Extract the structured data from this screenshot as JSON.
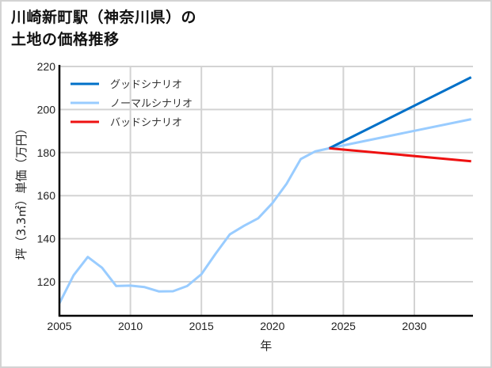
{
  "title": {
    "line1": "川崎新町駅（神奈川県）の",
    "line2": "土地の価格推移"
  },
  "chart_data": {
    "type": "line",
    "title": "川崎新町駅（神奈川県）の土地の価格推移",
    "xlabel": "年",
    "ylabel": "坪（3.3㎡）単価（万円）",
    "xlim": [
      2005,
      2034
    ],
    "ylim": [
      104,
      220
    ],
    "x_ticks": [
      2005,
      2010,
      2015,
      2020,
      2025,
      2030
    ],
    "y_ticks": [
      120,
      140,
      160,
      180,
      200,
      220
    ],
    "grid": true,
    "legend_position": "upper-left",
    "series": [
      {
        "name": "グッドシナリオ",
        "color": "#0070c8",
        "x": [
          2024,
          2034
        ],
        "values": [
          182,
          215
        ]
      },
      {
        "name": "ノーマルシナリオ",
        "color": "#99ccff",
        "x": [
          2005,
          2006,
          2007,
          2008,
          2009,
          2010,
          2011,
          2012,
          2013,
          2014,
          2015,
          2016,
          2017,
          2018,
          2019,
          2020,
          2021,
          2022,
          2023,
          2024,
          2034
        ],
        "values": [
          110,
          123,
          131.5,
          126.5,
          118,
          118.2,
          117.5,
          115.5,
          115.6,
          118,
          123.5,
          133,
          142,
          146,
          149.5,
          156.5,
          165.5,
          177,
          180.5,
          182,
          195.5
        ]
      },
      {
        "name": "バッドシナリオ",
        "color": "#ee1111",
        "x": [
          2024,
          2034
        ],
        "values": [
          182,
          176
        ]
      }
    ]
  }
}
